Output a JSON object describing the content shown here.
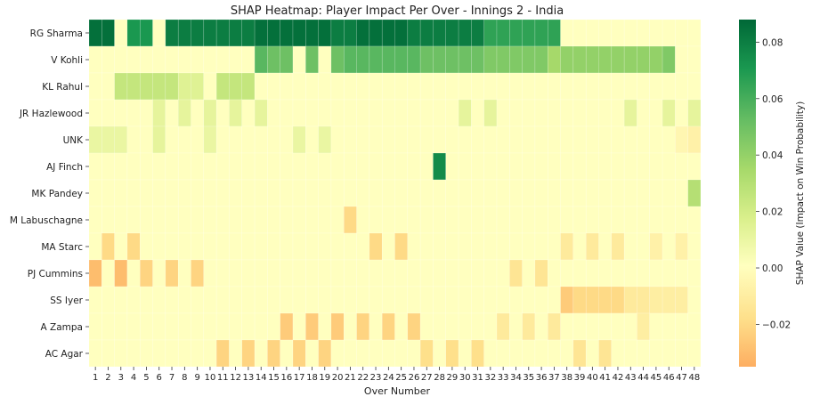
{
  "chart_data": {
    "type": "heatmap",
    "title": "SHAP Heatmap: Player Impact Per Over - Innings 2 - India",
    "xlabel": "Over Number",
    "colorbar_label": "SHAP Value (Impact on Win Probability)",
    "colorbar_ticks": [
      "0.08",
      "0.06",
      "0.04",
      "0.02",
      "0.00",
      "−0.02"
    ],
    "colorbar_tick_values": [
      0.08,
      0.06,
      0.04,
      0.02,
      0.0,
      -0.02
    ],
    "value_range": [
      -0.035,
      0.088
    ],
    "colormap": "RdYlGn",
    "x": [
      "1",
      "2",
      "3",
      "4",
      "5",
      "6",
      "7",
      "8",
      "9",
      "10",
      "11",
      "12",
      "13",
      "14",
      "15",
      "16",
      "17",
      "18",
      "19",
      "20",
      "21",
      "22",
      "23",
      "24",
      "25",
      "26",
      "27",
      "28",
      "29",
      "30",
      "31",
      "32",
      "33",
      "34",
      "35",
      "36",
      "37",
      "38",
      "39",
      "40",
      "41",
      "42",
      "43",
      "44",
      "45",
      "46",
      "47",
      "48"
    ],
    "rows": [
      {
        "name": "RG Sharma",
        "values": [
          0.085,
          0.085,
          0,
          0.07,
          0.07,
          0,
          0.08,
          0.08,
          0.08,
          0.08,
          0.08,
          0.08,
          0.08,
          0.085,
          0.085,
          0.085,
          0.085,
          0.085,
          0.085,
          0.08,
          0.08,
          0.085,
          0.085,
          0.085,
          0.085,
          0.08,
          0.08,
          0.08,
          0.08,
          0.08,
          0.08,
          0.065,
          0.065,
          0.065,
          0.065,
          0.065,
          0.065,
          0,
          0,
          0,
          0,
          0,
          0,
          0,
          0,
          0,
          0,
          0
        ]
      },
      {
        "name": "V Kohli",
        "values": [
          0,
          0,
          0,
          0,
          0,
          0,
          0,
          0,
          0,
          0,
          0,
          0,
          0,
          0.055,
          0.05,
          0.05,
          0,
          0.05,
          0,
          0.05,
          0.055,
          0.055,
          0.055,
          0.055,
          0.055,
          0.055,
          0.05,
          0.05,
          0.05,
          0.05,
          0.05,
          0.045,
          0.045,
          0.045,
          0.045,
          0.045,
          0.035,
          0.04,
          0.04,
          0.04,
          0.04,
          0.04,
          0.04,
          0.04,
          0.04,
          0.045,
          0,
          0
        ]
      },
      {
        "name": "KL Rahul",
        "values": [
          0,
          0,
          0.025,
          0.025,
          0.025,
          0.025,
          0.025,
          0.015,
          0.015,
          0,
          0.025,
          0.025,
          0.025,
          0,
          0,
          0,
          0,
          0,
          0,
          0,
          0,
          0,
          0,
          0,
          0,
          0,
          0,
          0,
          0,
          0,
          0,
          0,
          0,
          0,
          0,
          0,
          0,
          0,
          0,
          0,
          0,
          0,
          0,
          0,
          0,
          0,
          0,
          0
        ]
      },
      {
        "name": "JR Hazlewood",
        "values": [
          0,
          0,
          0,
          0,
          0,
          0.012,
          0,
          0.012,
          0,
          0.012,
          0,
          0.012,
          0,
          0.012,
          0,
          0,
          0,
          0,
          0,
          0,
          0,
          0,
          0,
          0,
          0,
          0,
          0,
          0,
          0,
          0.012,
          0,
          0.012,
          0,
          0,
          0,
          0,
          0,
          0,
          0,
          0,
          0,
          0,
          0.012,
          0,
          0,
          0.012,
          0,
          0.012
        ]
      },
      {
        "name": "UNK",
        "values": [
          0.01,
          0.01,
          0.01,
          0,
          0,
          0.012,
          0,
          0,
          0,
          0.01,
          0,
          0,
          0,
          0,
          0,
          0,
          0.01,
          0,
          0.01,
          0,
          0,
          0,
          0,
          0,
          0,
          0,
          0,
          0,
          0,
          0,
          0,
          0,
          0,
          0,
          0,
          0,
          0,
          0,
          0,
          0,
          0,
          0,
          0,
          0,
          0,
          0,
          -0.005,
          -0.008
        ]
      },
      {
        "name": "AJ Finch",
        "values": [
          0,
          0,
          0,
          0,
          0,
          0,
          0,
          0,
          0,
          0,
          0,
          0,
          0,
          0,
          0,
          0,
          0,
          0,
          0,
          0,
          0,
          0,
          0,
          0,
          0,
          0,
          0,
          0.075,
          0,
          0,
          0,
          0,
          0,
          0,
          0,
          0,
          0,
          0,
          0,
          0,
          0,
          0,
          0,
          0,
          0,
          0,
          0,
          0
        ]
      },
      {
        "name": "MK Pandey",
        "values": [
          0,
          0,
          0,
          0,
          0,
          0,
          0,
          0,
          0,
          0,
          0,
          0,
          0,
          0,
          0,
          0,
          0,
          0,
          0,
          0,
          0,
          0,
          0,
          0,
          0,
          0,
          0,
          0,
          0,
          0,
          0,
          0,
          0,
          0,
          0,
          0,
          0,
          0,
          0,
          0,
          0,
          0,
          0,
          0,
          0,
          0,
          0,
          0.03
        ]
      },
      {
        "name": "M Labuschagne",
        "values": [
          0,
          0,
          0,
          0,
          0,
          0,
          0,
          0,
          0,
          0,
          0,
          0,
          0,
          0,
          0,
          0,
          0,
          0,
          0,
          0,
          -0.02,
          0,
          0,
          0,
          0,
          0,
          0,
          0,
          0,
          0,
          0,
          0,
          0,
          0,
          0,
          0,
          0,
          0,
          0,
          0,
          0,
          0,
          0,
          0,
          0,
          0,
          0,
          0
        ]
      },
      {
        "name": "MA Starc",
        "values": [
          0,
          -0.02,
          0,
          -0.02,
          0,
          0,
          0,
          0,
          0,
          0,
          0,
          0,
          0,
          0,
          0,
          0,
          0,
          0,
          0,
          0,
          0,
          0,
          -0.02,
          0,
          -0.02,
          0,
          0,
          0,
          0,
          0,
          0,
          0,
          0,
          0,
          0,
          0,
          0,
          -0.012,
          0,
          -0.012,
          0,
          -0.012,
          0,
          0,
          -0.008,
          0,
          -0.008,
          0
        ]
      },
      {
        "name": "PJ Cummins",
        "values": [
          -0.03,
          0,
          -0.03,
          0,
          -0.022,
          0,
          -0.022,
          0,
          -0.022,
          0,
          0,
          0,
          0,
          0,
          0,
          0,
          0,
          0,
          0,
          0,
          0,
          0,
          0,
          0,
          0,
          0,
          0,
          0,
          0,
          0,
          0,
          0,
          0,
          -0.015,
          0,
          -0.015,
          0,
          0,
          0,
          0,
          0,
          0,
          0,
          0,
          0,
          0,
          0,
          0
        ]
      },
      {
        "name": "SS Iyer",
        "values": [
          0,
          0,
          0,
          0,
          0,
          0,
          0,
          0,
          0,
          0,
          0,
          0,
          0,
          0,
          0,
          0,
          0,
          0,
          0,
          0,
          0,
          0,
          0,
          0,
          0,
          0,
          0,
          0,
          0,
          0,
          0,
          0,
          0,
          0,
          0,
          0,
          0,
          -0.025,
          -0.02,
          -0.02,
          -0.02,
          -0.02,
          -0.012,
          -0.012,
          -0.01,
          -0.01,
          -0.01,
          0
        ]
      },
      {
        "name": "A Zampa",
        "values": [
          0,
          0,
          0,
          0,
          0,
          0,
          0,
          0,
          0,
          0,
          0,
          0,
          0,
          0,
          0,
          -0.025,
          0,
          -0.025,
          0,
          -0.025,
          0,
          -0.022,
          0,
          -0.022,
          0,
          -0.022,
          0,
          0,
          0,
          0,
          0,
          0,
          -0.012,
          0,
          -0.012,
          0,
          -0.012,
          0,
          0,
          0,
          0,
          0,
          0,
          -0.01,
          0,
          0,
          0,
          0
        ]
      },
      {
        "name": "AC Agar",
        "values": [
          0,
          0,
          0,
          0,
          0,
          0,
          0,
          0,
          0,
          0,
          -0.022,
          0,
          -0.022,
          0,
          -0.022,
          0,
          -0.022,
          0,
          -0.022,
          0,
          0,
          0,
          0,
          0,
          0,
          0,
          -0.018,
          0,
          -0.018,
          0,
          -0.018,
          0,
          0,
          0,
          0,
          0,
          0,
          0,
          -0.015,
          0,
          -0.015,
          0,
          0,
          0,
          0,
          0,
          0,
          0
        ]
      }
    ]
  }
}
